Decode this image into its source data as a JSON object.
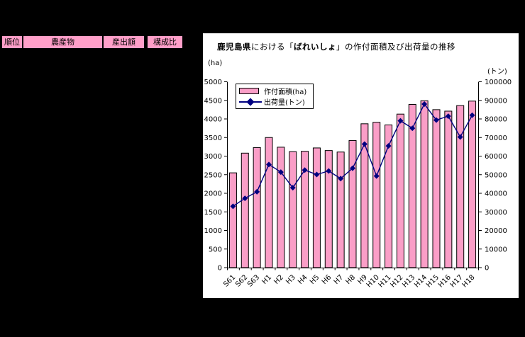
{
  "colors": {
    "background": "#000000",
    "panel": "#FFFFFF",
    "bar_fill": "#FA9EC7",
    "bar_border": "#000000",
    "line": "#000080",
    "header_fill": "#FF9FC9",
    "axis": "#000000",
    "text": "#000000"
  },
  "table_header": {
    "columns": [
      "順位",
      "農産物",
      "産出額",
      "構成比"
    ]
  },
  "chart": {
    "title_parts": {
      "bold1": "鹿児島県",
      "normal1": "における「",
      "bold2": "ばれいしょ",
      "normal2": "」の作付面積及び出荷量の推移"
    },
    "unit_left": "(ha)",
    "unit_right": "(トン)",
    "legend": [
      {
        "label": "作付面積(ha)",
        "marker": "bar-swatch"
      },
      {
        "label": "出荷量(トン)",
        "marker": "line-diamond"
      }
    ]
  },
  "chart_data": {
    "type": "bar+line",
    "title": "鹿児島県における「ばれいしょ」の作付面積及び出荷量の推移",
    "categories": [
      "S61",
      "S62",
      "S63",
      "H1",
      "H2",
      "H3",
      "H4",
      "H5",
      "H6",
      "H7",
      "H8",
      "H9",
      "H10",
      "H11",
      "H12",
      "H13",
      "H14",
      "H15",
      "H16",
      "H17",
      "H18"
    ],
    "series": [
      {
        "name": "作付面積(ha)",
        "type": "bar",
        "axis": "left",
        "values": [
          2550,
          3080,
          3230,
          3500,
          3240,
          3120,
          3130,
          3220,
          3150,
          3110,
          3420,
          3870,
          3910,
          3840,
          4130,
          4390,
          4490,
          4250,
          4210,
          4360,
          4480
        ]
      },
      {
        "name": "出荷量(トン)",
        "type": "line",
        "axis": "right",
        "values": [
          33000,
          37300,
          40800,
          55500,
          51400,
          43000,
          52500,
          50100,
          52000,
          47900,
          53500,
          66500,
          49300,
          65500,
          79000,
          75000,
          88000,
          79400,
          81500,
          70300,
          82000
        ]
      }
    ],
    "left_axis": {
      "unit": "(ha)",
      "min": 0,
      "max": 5000,
      "step": 500
    },
    "right_axis": {
      "unit": "(トン)",
      "min": 0,
      "max": 100000,
      "step": 10000
    },
    "grid": false,
    "legend_position": "top-left-inside",
    "x_label_rotation": -45
  }
}
